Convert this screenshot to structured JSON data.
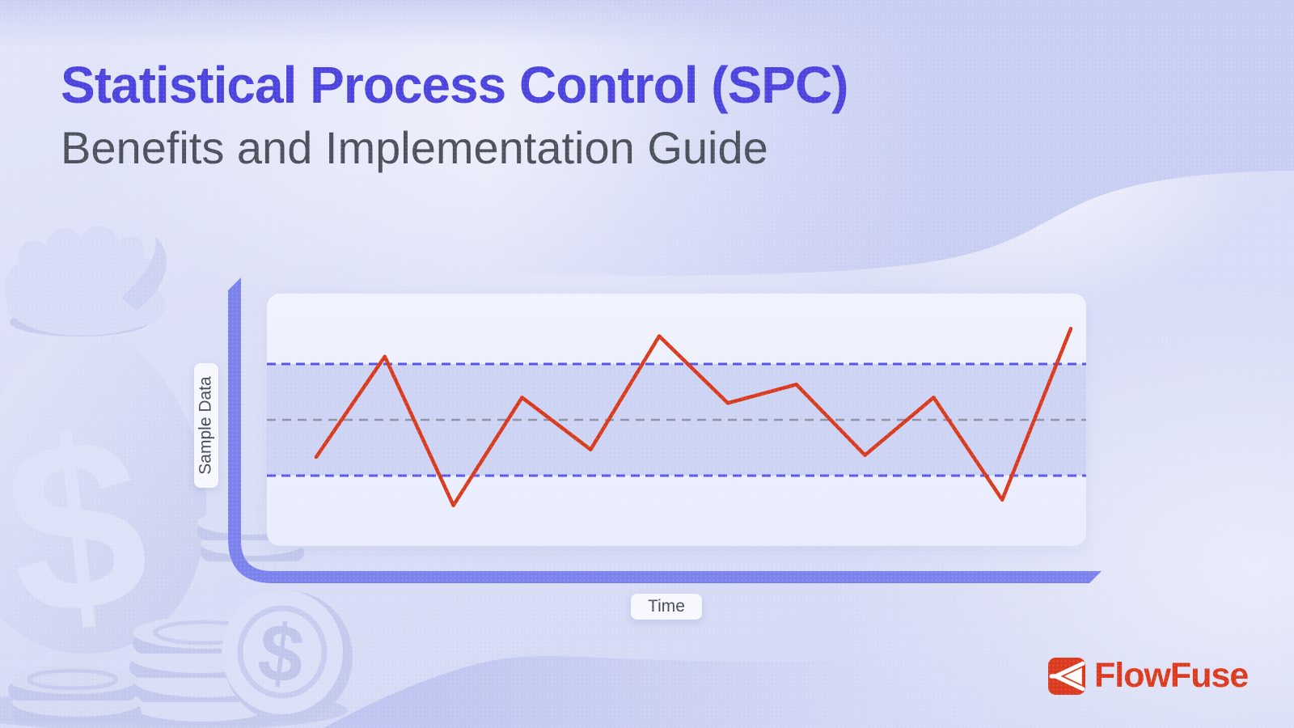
{
  "header": {
    "title": "Statistical Process Control (SPC)",
    "subtitle": "Benefits and Implementation Guide"
  },
  "chart": {
    "y_axis_label": "Sample Data",
    "x_axis_label": "Time"
  },
  "chart_data": {
    "type": "line",
    "title": "",
    "x": [
      1,
      2,
      3,
      4,
      5,
      6,
      7,
      8,
      9,
      10,
      11,
      12
    ],
    "xlabel": "Time",
    "ylabel": "Sample Data",
    "ylim": [
      44.5,
      56
    ],
    "grid": false,
    "legend": false,
    "series": [
      {
        "name": "Sample Data",
        "color": "#d93a1d",
        "values": [
          48.0,
          53.4,
          45.4,
          51.2,
          48.4,
          54.5,
          50.9,
          51.9,
          48.1,
          51.2,
          45.7,
          54.9
        ]
      }
    ],
    "control_limits": {
      "ucl": 53.0,
      "center": 50.0,
      "lcl": 47.0,
      "ucl_lcl_style": "dashed",
      "center_style": "dashed"
    }
  },
  "branding": {
    "logo_text": "FlowFuse",
    "logo_icon": "flowfuse-fork-icon"
  },
  "illustration": {
    "name": "money-bag-with-coins",
    "dollar_sign": "$"
  },
  "colors": {
    "title": "#4c44dd",
    "subtitle": "#4c515b",
    "axis": "#7c82ec",
    "panel_top": "#f0f2fd",
    "panel_bottom": "#e9ecfb",
    "control_band": "#cdd3f3",
    "limit_line": "#5a55e4",
    "center_line": "#8e94a4",
    "series_line": "#d93a1d",
    "label_text": "#474c57",
    "logo_red": "#dc3a1e",
    "background": "#d9ddf6"
  }
}
